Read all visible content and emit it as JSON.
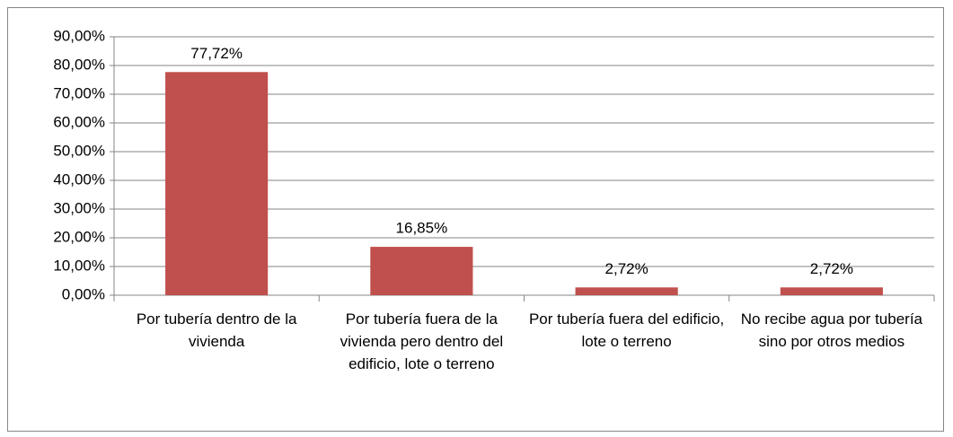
{
  "chart_data": {
    "type": "bar",
    "categories": [
      "Por tubería dentro de la vivienda",
      "Por tubería fuera de la vivienda pero dentro del edificio, lote o terreno",
      "Por tubería fuera del edificio, lote o terreno",
      "No recibe agua por tubería sino por otros medios"
    ],
    "values": [
      77.72,
      16.85,
      2.72,
      2.72
    ],
    "value_labels": [
      "77,72%",
      "16,85%",
      "2,72%",
      "2,72%"
    ],
    "color": "#c0504d",
    "ylim": [
      0,
      90
    ],
    "yticks": [
      {
        "value": 0,
        "label": "0,00%"
      },
      {
        "value": 10,
        "label": "10,00%"
      },
      {
        "value": 20,
        "label": "20,00%"
      },
      {
        "value": 30,
        "label": "30,00%"
      },
      {
        "value": 40,
        "label": "40,00%"
      },
      {
        "value": 50,
        "label": "50,00%"
      },
      {
        "value": 60,
        "label": "60,00%"
      },
      {
        "value": 70,
        "label": "70,00%"
      },
      {
        "value": 80,
        "label": "80,00%"
      },
      {
        "value": 90,
        "label": "90,00%"
      }
    ],
    "grid": true
  }
}
